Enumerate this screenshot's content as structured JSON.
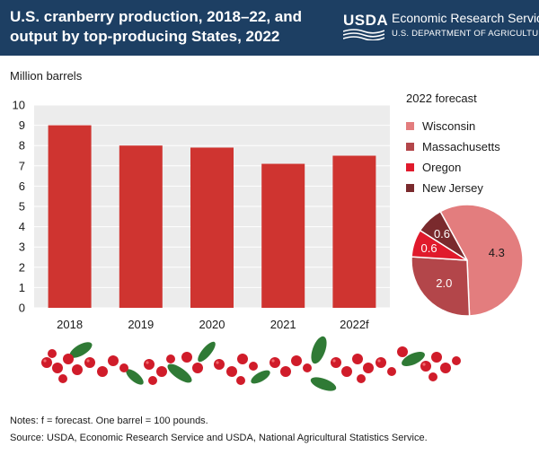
{
  "header": {
    "title_line1": "U.S. cranberry production, 2018–22, and",
    "title_line2": "output by top-producing States, 2022",
    "agency_logo": "USDA",
    "agency_name": "Economic Research Service",
    "department": "U.S. DEPARTMENT OF AGRICULTURE"
  },
  "chart_data": [
    {
      "type": "bar",
      "ylabel": "Million barrels",
      "categories": [
        "2018",
        "2019",
        "2020",
        "2021",
        "2022f"
      ],
      "values": [
        9.0,
        8.0,
        7.9,
        7.1,
        7.5
      ],
      "ylim": [
        0,
        10
      ],
      "yticks": [
        "0",
        "1",
        "2",
        "3",
        "4",
        "5",
        "6",
        "7",
        "8",
        "9",
        "10"
      ],
      "grid": true,
      "color": "#cf3430"
    },
    {
      "type": "pie",
      "title": "2022 forecast",
      "legend_position": "right",
      "slices": [
        {
          "name": "Wisconsin",
          "value": 4.3,
          "label": "4.3",
          "color": "#e37d7e"
        },
        {
          "name": "Massachusetts",
          "value": 2.0,
          "label": "2.0",
          "color": "#b3464a"
        },
        {
          "name": "Oregon",
          "value": 0.6,
          "label": "0.6",
          "color": "#e01a2c"
        },
        {
          "name": "New Jersey",
          "value": 0.6,
          "label": "0.6",
          "color": "#7a2a2d"
        }
      ]
    }
  ],
  "footer": {
    "notes": "Notes: f = forecast. One barrel = 100 pounds.",
    "source": "Source: USDA, Economic Research Service and USDA, National Agricultural Statistics Service."
  },
  "colors": {
    "header_bg": "#1d3f63",
    "plot_bg": "#ececec",
    "grid": "#ffffff",
    "bar": "#cf3430"
  },
  "decoration": "cranberries-with-leaves"
}
